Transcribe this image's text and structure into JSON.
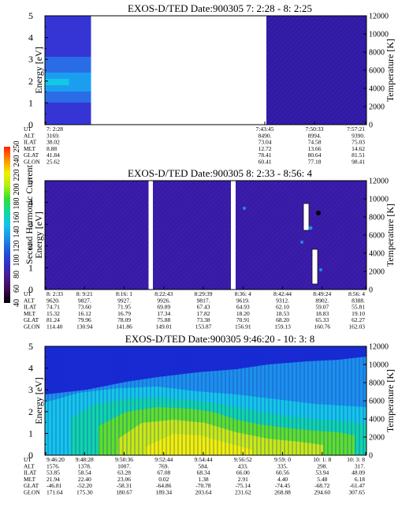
{
  "chart_data": {
    "type": "heatmap",
    "colorbar": {
      "label": "Second Harmonic Current",
      "ticks": [
        "40",
        "60",
        "80",
        "100",
        "120",
        "140",
        "160",
        "180",
        "200",
        "220",
        "240",
        "250"
      ],
      "colors": [
        "#000000",
        "#3a0a52",
        "#4b1a8a",
        "#3030c8",
        "#1e5ad8",
        "#1e90e8",
        "#12c4e8",
        "#10d8a0",
        "#30e030",
        "#b4ee10",
        "#f0f000",
        "#ff8c00",
        "#ff2000"
      ]
    },
    "panels": [
      {
        "title": "EXOS-D/TED   Date:900305  7: 2:28 - 8: 2:25",
        "ylabel": "Energy [eV]",
        "y2label": "Temperature [K]",
        "ylim": [
          0,
          5
        ],
        "yticks": [
          "0",
          "1",
          "2",
          "3",
          "4",
          "5"
        ],
        "y2lim": [
          0,
          12000
        ],
        "y2ticks": [
          "0",
          "2000",
          "4000",
          "6000",
          "8000",
          "10000",
          "12000"
        ],
        "row_labels": [
          "UT",
          "ALT",
          "ILAT",
          "MLT",
          "GLAT",
          "GLON"
        ],
        "columns": [
          {
            "UT": "7: 2:28",
            "ALT": "3169.",
            "ILAT": "38.02",
            "MLT": "8.88",
            "GLAT": "41.84",
            "GLON": "25.62"
          },
          {
            "UT": "7:43:45",
            "ALT": "8490.",
            "ILAT": "73.04",
            "MLT": "12.72",
            "GLAT": "78.41",
            "GLON": "60.41"
          },
          {
            "UT": "7:50:33",
            "ALT": "8994.",
            "ILAT": "74.58",
            "MLT": "13.66",
            "GLAT": "80.64",
            "GLON": "77.18"
          },
          {
            "UT": "7:57:21",
            "ALT": "9390.",
            "ILAT": "75.03",
            "MLT": "14.62",
            "GLAT": "81.51",
            "GLON": "98.41"
          }
        ]
      },
      {
        "title": "EXOS-D/TED   Date:900305  8: 2:33 - 8:56: 4",
        "ylabel": "Energy [eV]",
        "y2label": "Temperature [K]",
        "ylim": [
          0,
          5
        ],
        "yticks": [
          "0",
          "1",
          "2",
          "3",
          "4",
          "5"
        ],
        "y2lim": [
          0,
          12000
        ],
        "y2ticks": [
          "0",
          "2000",
          "4000",
          "6000",
          "8000",
          "10000",
          "12000"
        ],
        "row_labels": [
          "UT",
          "ALT",
          "ILAT",
          "MLT",
          "GLAT",
          "GLON"
        ],
        "columns": [
          {
            "UT": "8: 2:33",
            "ALT": "9620.",
            "ILAT": "74.71",
            "MLT": "15.32",
            "GLAT": "81.24",
            "GLON": "114.40"
          },
          {
            "UT": "8: 9:21",
            "ALT": "9827.",
            "ILAT": "73.60",
            "MLT": "16.12",
            "GLAT": "79.96",
            "GLON": "130.94"
          },
          {
            "UT": "8:16: 1",
            "ALT": "9927.",
            "ILAT": "71.95",
            "MLT": "16.79",
            "GLAT": "78.09",
            "GLON": "141.86"
          },
          {
            "UT": "8:22:43",
            "ALT": "9926.",
            "ILAT": "69.89",
            "MLT": "17.34",
            "GLAT": "75.88",
            "GLON": "149.01"
          },
          {
            "UT": "8:29:39",
            "ALT": "9817.",
            "ILAT": "67.43",
            "MLT": "17.82",
            "GLAT": "73.38",
            "GLON": "153.87"
          },
          {
            "UT": "8:36: 4",
            "ALT": "9619.",
            "ILAT": "64.93",
            "MLT": "18.20",
            "GLAT": "70.91",
            "GLON": "156.91"
          },
          {
            "UT": "8:42:44",
            "ALT": "9312.",
            "ILAT": "62.10",
            "MLT": "18.53",
            "GLAT": "68.20",
            "GLON": "159.13"
          },
          {
            "UT": "8:49:24",
            "ALT": "8902.",
            "ILAT": "59.07",
            "MLT": "18.83",
            "GLAT": "65.33",
            "GLON": "160.76"
          },
          {
            "UT": "8:56: 4",
            "ALT": "8388.",
            "ILAT": "55.81",
            "MLT": "19.10",
            "GLAT": "62.27",
            "GLON": "162.03"
          }
        ]
      },
      {
        "title": "EXOS-D/TED   Date:900305  9:46:20 - 10: 3: 8",
        "ylabel": "Energy [eV]",
        "y2label": "Temperature [K]",
        "ylim": [
          0,
          5
        ],
        "yticks": [
          "0",
          "1",
          "2",
          "3",
          "4",
          "5"
        ],
        "y2lim": [
          0,
          12000
        ],
        "y2ticks": [
          "0",
          "2000",
          "4000",
          "6000",
          "8000",
          "10000",
          "12000"
        ],
        "row_labels": [
          "UT",
          "ALT",
          "ILAT",
          "MLT",
          "GLAT",
          "GLON"
        ],
        "columns": [
          {
            "UT": "9:46:20",
            "ALT": "1576.",
            "ILAT": "53.85",
            "MLT": "21.94",
            "GLAT": "-46.81",
            "GLON": "171.64"
          },
          {
            "UT": "9:48:28",
            "ALT": "1378.",
            "ILAT": "58.54",
            "MLT": "22.40",
            "GLAT": "-52.20",
            "GLON": "175.30"
          },
          {
            "UT": "9:50:36",
            "ALT": "1007.",
            "ILAT": "63.28",
            "MLT": "23.06",
            "GLAT": "-58.31",
            "GLON": "180.67"
          },
          {
            "UT": "9:52:44",
            "ALT": "769.",
            "ILAT": "67.08",
            "MLT": "0.02",
            "GLAT": "-64.86",
            "GLON": "189.34"
          },
          {
            "UT": "9:54:44",
            "ALT": "584.",
            "ILAT": "68.34",
            "MLT": "1.38",
            "GLAT": "-70.78",
            "GLON": "203.64"
          },
          {
            "UT": "9:56:52",
            "ALT": "433.",
            "ILAT": "66.00",
            "MLT": "2.91",
            "GLAT": "-75.14",
            "GLON": "231.62"
          },
          {
            "UT": "9:59: 0",
            "ALT": "335.",
            "ILAT": "60.56",
            "MLT": "4.40",
            "GLAT": "-74.45",
            "GLON": "268.88"
          },
          {
            "UT": "10: 1: 8",
            "ALT": "298.",
            "ILAT": "53.94",
            "MLT": "5.48",
            "GLAT": "-68.72",
            "GLON": "294.60"
          },
          {
            "UT": "10: 3: 8",
            "ALT": "317.",
            "ILAT": "48.09",
            "MLT": "6.18",
            "GLAT": "-61.47",
            "GLON": "307.65"
          }
        ]
      }
    ]
  }
}
